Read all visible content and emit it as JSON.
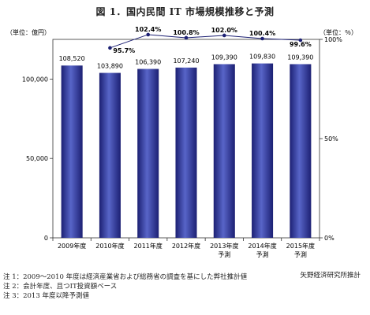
{
  "title": "図 1．国内民間 IT 市場規模推移と予測",
  "left_unit": "（単位：億円）",
  "right_unit": "（単位：％）",
  "source": "矢野経済研究所推計",
  "notes": [
    "注 1：2009～2010 年度は経済産業省および総務省の調査を基にした弊社推計値",
    "注 2：会計年度、且つIT投資額ベース",
    "注 3：2013 年度以降予測値"
  ],
  "chart_data": {
    "type": "bar",
    "title": "図 1．国内民間 IT 市場規模推移と予測",
    "categories": [
      "2009年度",
      "2010年度",
      "2011年度",
      "2012年度",
      "2013年度\n予測",
      "2014年度\n予測",
      "2015年度\n予測"
    ],
    "series": [
      {
        "name": "",
        "type": "bar",
        "axis": "left",
        "values": [
          108520,
          103890,
          106390,
          107240,
          109390,
          109830,
          109390
        ],
        "labels": [
          "108,520",
          "103,890",
          "106,390",
          "107,240",
          "109,390",
          "109,830",
          "109,390"
        ]
      },
      {
        "name": "",
        "type": "line",
        "axis": "right",
        "values": [
          null,
          95.7,
          102.4,
          100.8,
          102.0,
          100.4,
          99.6
        ],
        "labels": [
          "",
          "95.7%",
          "102.4%",
          "100.8%",
          "102.0%",
          "100.4%",
          "99.6%"
        ]
      }
    ],
    "y_left": {
      "min": 0,
      "max": 125000,
      "ticks": [
        0,
        50000,
        100000
      ],
      "tick_labels": [
        "0",
        "50,000",
        "100,000"
      ]
    },
    "y_right": {
      "min": 0,
      "max": 100,
      "ticks": [
        0,
        50,
        100
      ],
      "tick_labels": [
        "0%",
        "50%",
        "100%"
      ]
    },
    "colors": {
      "bar_light": "#5865c8",
      "bar_dark": "#1c2073",
      "line": "#1c2073"
    },
    "grid": false,
    "legend": "none"
  }
}
